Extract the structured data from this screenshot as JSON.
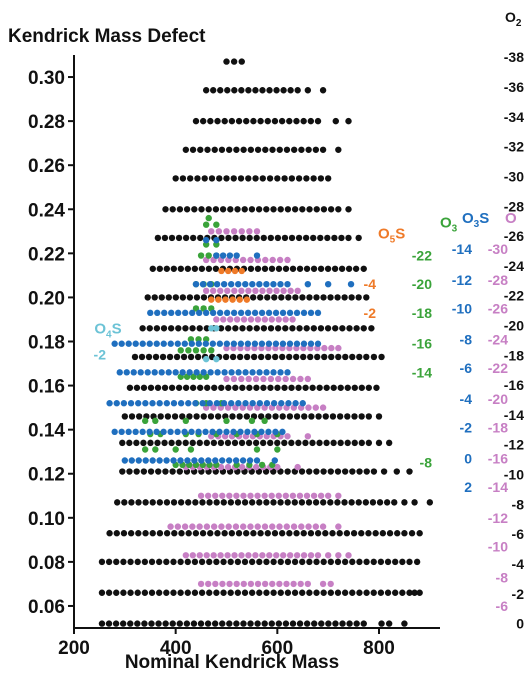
{
  "chart_data": {
    "type": "scatter",
    "title": "Kendrick Mass Defect",
    "xlabel": "Nominal Kendrick Mass",
    "ylabel": "Kendrick Mass Defect",
    "xlim": [
      200,
      920
    ],
    "ylim": [
      0.05,
      0.31
    ],
    "x_ticks": [
      200,
      400,
      600,
      800
    ],
    "y_ticks": [
      0.06,
      0.08,
      0.1,
      0.12,
      0.14,
      0.16,
      0.18,
      0.2,
      0.22,
      0.24,
      0.26,
      0.28,
      0.3
    ],
    "grid": false,
    "series_colors": {
      "O2": "#111111",
      "O": "#c77fc4",
      "O3": "#3aa33a",
      "O3S": "#1f6fbf",
      "O4S": "#6cc3d6",
      "O5S": "#ef7a28"
    },
    "series": [
      {
        "name": "O2",
        "color": "#111111",
        "rows": [
          {
            "y": 0.052,
            "x": [
              255,
              770
            ],
            "extra": [
              805,
              820,
              850
            ]
          },
          {
            "y": 0.066,
            "x": [
              255,
              860
            ],
            "extra": [
              870,
              880
            ]
          },
          {
            "y": 0.08,
            "x": [
              255,
              860
            ],
            "extra": [
              875
            ]
          },
          {
            "y": 0.093,
            "x": [
              270,
              850
            ],
            "extra": [
              865,
              880
            ]
          },
          {
            "y": 0.107,
            "x": [
              285,
              830
            ],
            "extra": [
              850,
              870,
              900
            ]
          },
          {
            "y": 0.121,
            "x": [
              295,
              790
            ],
            "extra": [
              810,
              835,
              860
            ]
          },
          {
            "y": 0.134,
            "x": [
              295,
              780
            ],
            "extra": [
              800,
              820
            ]
          },
          {
            "y": 0.146,
            "x": [
              300,
              780
            ],
            "extra": [
              800
            ]
          },
          {
            "y": 0.159,
            "x": [
              310,
              780
            ],
            "extra": [
              795
            ]
          },
          {
            "y": 0.173,
            "x": [
              320,
              775
            ],
            "extra": [
              790,
              805
            ]
          },
          {
            "y": 0.186,
            "x": [
              335,
              770
            ],
            "extra": [
              785
            ]
          },
          {
            "y": 0.2,
            "x": [
              345,
              760
            ],
            "extra": [
              775
            ]
          },
          {
            "y": 0.213,
            "x": [
              355,
              755
            ],
            "extra": [
              770
            ]
          },
          {
            "y": 0.227,
            "x": [
              365,
              740
            ],
            "extra": [
              760
            ]
          },
          {
            "y": 0.24,
            "x": [
              380,
              720
            ],
            "extra": [
              740
            ]
          },
          {
            "y": 0.254,
            "x": [
              400,
              700
            ],
            "extra": []
          },
          {
            "y": 0.267,
            "x": [
              420,
              690
            ],
            "extra": [
              720
            ]
          },
          {
            "y": 0.28,
            "x": [
              440,
              680
            ],
            "extra": [
              715,
              740
            ]
          },
          {
            "y": 0.294,
            "x": [
              460,
              640
            ],
            "extra": [
              660,
              690
            ]
          },
          {
            "y": 0.307,
            "x": [
              500,
              530
            ],
            "extra": []
          }
        ]
      },
      {
        "name": "O",
        "color": "#c77fc4",
        "rows": [
          {
            "y": 0.07,
            "x": [
              450,
              660
            ],
            "extra": [
              690,
              705
            ]
          },
          {
            "y": 0.083,
            "x": [
              420,
              680
            ],
            "extra": [
              700,
              720,
              740
            ]
          },
          {
            "y": 0.096,
            "x": [
              390,
              690
            ],
            "extra": [
              720
            ]
          },
          {
            "y": 0.11,
            "x": [
              450,
              700
            ],
            "extra": [
              720
            ]
          },
          {
            "y": 0.123,
            "x": [
              420,
              600
            ],
            "extra": [
              640
            ]
          },
          {
            "y": 0.137,
            "x": [
              470,
              620
            ],
            "extra": [
              660
            ]
          },
          {
            "y": 0.15,
            "x": [
              460,
              690
            ],
            "extra": []
          },
          {
            "y": 0.163,
            "x": [
              500,
              660
            ],
            "extra": []
          },
          {
            "y": 0.177,
            "x": [
              500,
              720
            ],
            "extra": []
          },
          {
            "y": 0.19,
            "x": [
              480,
              630
            ],
            "extra": []
          },
          {
            "y": 0.203,
            "x": [
              460,
              640
            ],
            "extra": []
          },
          {
            "y": 0.217,
            "x": [
              460,
              620
            ],
            "extra": []
          },
          {
            "y": 0.23,
            "x": [
              470,
              560
            ],
            "extra": []
          }
        ]
      },
      {
        "name": "O3",
        "color": "#3aa33a",
        "rows": [
          {
            "y": 0.124,
            "x": [
              400,
              480
            ],
            "extra": [
              520,
              545,
              570,
              590
            ]
          },
          {
            "y": 0.131,
            "x": [
              340,
              360
            ],
            "extra": [
              400,
              430,
              560,
              600
            ]
          },
          {
            "y": 0.138,
            "x": [
              350,
              370
            ],
            "extra": [
              420,
              445,
              480,
              520,
              560,
              600
            ]
          },
          {
            "y": 0.144,
            "x": [
              340,
              360
            ],
            "extra": [
              420,
              500,
              550,
              575
            ]
          },
          {
            "y": 0.152,
            "x": [
              440,
              460
            ],
            "extra": [
              490
            ]
          },
          {
            "y": 0.164,
            "x": [
              410,
              460
            ],
            "extra": []
          },
          {
            "y": 0.176,
            "x": [
              410,
              470
            ],
            "extra": []
          },
          {
            "y": 0.181,
            "x": [
              430,
              460
            ],
            "extra": []
          },
          {
            "y": 0.195,
            "x": [
              440,
              470
            ],
            "extra": []
          },
          {
            "y": 0.206,
            "x": [
              440,
              470
            ],
            "extra": []
          },
          {
            "y": 0.219,
            "x": [
              450,
              480
            ],
            "extra": []
          },
          {
            "y": 0.224,
            "x": [
              460,
              480
            ],
            "extra": []
          },
          {
            "y": 0.233,
            "x": [
              460,
              480
            ],
            "extra": []
          },
          {
            "y": 0.236,
            "x": [
              465,
              470
            ],
            "extra": []
          }
        ]
      },
      {
        "name": "O3S",
        "color": "#1f6fbf",
        "rows": [
          {
            "y": 0.126,
            "x": [
              300,
              560
            ],
            "extra": [
              595
            ]
          },
          {
            "y": 0.139,
            "x": [
              280,
              610
            ],
            "extra": []
          },
          {
            "y": 0.152,
            "x": [
              270,
              650
            ],
            "extra": []
          },
          {
            "y": 0.166,
            "x": [
              290,
              620
            ],
            "extra": []
          },
          {
            "y": 0.179,
            "x": [
              280,
              680
            ],
            "extra": []
          },
          {
            "y": 0.193,
            "x": [
              350,
              680
            ],
            "extra": []
          },
          {
            "y": 0.206,
            "x": [
              440,
              620
            ],
            "extra": [
              660,
              700,
              745
            ]
          },
          {
            "y": 0.219,
            "x": [
              480,
              520
            ],
            "extra": [
              560
            ]
          },
          {
            "y": 0.226,
            "x": [
              460,
              480
            ],
            "extra": []
          }
        ]
      },
      {
        "name": "O4S",
        "color": "#6cc3d6",
        "rows": [
          {
            "y": 0.172,
            "x": [
              460,
              480
            ],
            "extra": []
          },
          {
            "y": 0.186,
            "x": [
              470,
              480
            ],
            "extra": []
          }
        ]
      },
      {
        "name": "O5S",
        "color": "#ef7a28",
        "rows": [
          {
            "y": 0.199,
            "x": [
              470,
              540
            ],
            "extra": []
          },
          {
            "y": 0.212,
            "x": [
              490,
              530
            ],
            "extra": []
          }
        ]
      }
    ],
    "right_axis": {
      "header_O2": "O",
      "header_O2_sub": "2",
      "values": [
        "-38",
        "-36",
        "-34",
        "-32",
        "-30",
        "-28",
        "-26",
        "-24",
        "-22",
        "-20",
        "-18",
        "-16",
        "-14",
        "-12",
        "-10",
        "-8",
        "-6",
        "-4",
        "-2",
        "0"
      ],
      "kmd_top": 0.309,
      "kmd_bottom": 0.052
    },
    "annotations": [
      {
        "id": "O5S",
        "base": "O",
        "sub": "5",
        "tail": "S",
        "color": "#ef7a28",
        "values": [
          "-4",
          "-2"
        ],
        "kmd_header": 0.229,
        "kmd_values": [
          0.206,
          0.193
        ]
      },
      {
        "id": "O3",
        "base": "O",
        "sub": "3",
        "tail": "",
        "color": "#3aa33a",
        "values": [
          "-22",
          "-20",
          "-18",
          "-16",
          "-14",
          "-8"
        ],
        "kmd_header": 0.234,
        "kmd_values": [
          0.219,
          0.206,
          0.193,
          0.179,
          0.166,
          0.125
        ]
      },
      {
        "id": "O3S",
        "base": "O",
        "sub": "3",
        "tail": "S",
        "color": "#1f6fbf",
        "values": [
          "-14",
          "-12",
          "-10",
          "-8",
          "-6",
          "-4",
          "-2",
          "0",
          "2"
        ],
        "kmd_header": 0.236,
        "kmd_values": [
          0.222,
          0.208,
          0.195,
          0.181,
          0.168,
          0.154,
          0.141,
          0.127,
          0.114
        ]
      },
      {
        "id": "O",
        "base": "O",
        "sub": "",
        "tail": "",
        "color": "#c77fc4",
        "values": [
          "-30",
          "-28",
          "-26",
          "-24",
          "-22",
          "-20",
          "-18",
          "-16",
          "-14",
          "-12",
          "-10",
          "-8",
          "-6"
        ],
        "kmd_header": 0.236,
        "kmd_values": [
          0.222,
          0.208,
          0.195,
          0.181,
          0.168,
          0.154,
          0.141,
          0.127,
          0.114,
          0.1,
          0.087,
          0.073,
          0.06
        ]
      },
      {
        "id": "O4S",
        "base": "O",
        "sub": "4",
        "tail": "S",
        "color": "#6cc3d6",
        "values": [
          "-2"
        ],
        "kmd_header": 0.186,
        "kmd_values": [
          0.174
        ]
      }
    ]
  }
}
